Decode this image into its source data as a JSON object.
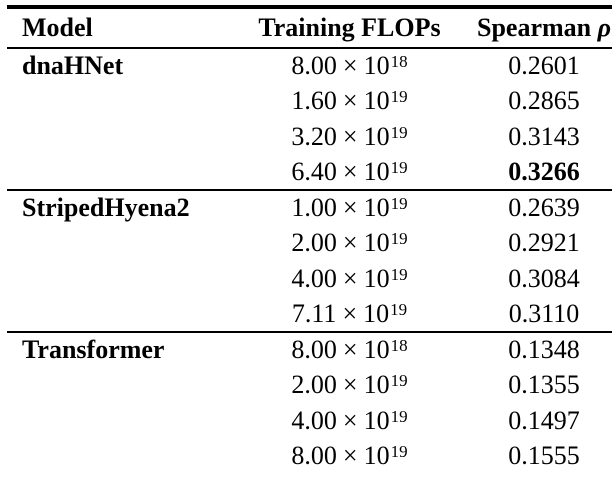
{
  "page": {
    "background_color": "#ffffff",
    "text_color": "#000000",
    "rule_color": "#000000"
  },
  "table": {
    "headers": {
      "model": "Model",
      "flops": "Training FLOPs",
      "spearman_word": "Spearman",
      "rho_symbol": "ρ"
    },
    "notation": {
      "multiply_symbol": "×",
      "base": "10"
    },
    "best_value": "0.3266",
    "groups": [
      {
        "model": "dnaHNet",
        "rows": [
          {
            "flops_coefficient": "8.00",
            "flops_exponent": "18",
            "spearman": "0.2601",
            "bold": false
          },
          {
            "flops_coefficient": "1.60",
            "flops_exponent": "19",
            "spearman": "0.2865",
            "bold": false
          },
          {
            "flops_coefficient": "3.20",
            "flops_exponent": "19",
            "spearman": "0.3143",
            "bold": false
          },
          {
            "flops_coefficient": "6.40",
            "flops_exponent": "19",
            "spearman": "0.3266",
            "bold": true
          }
        ]
      },
      {
        "model": "StripedHyena2",
        "rows": [
          {
            "flops_coefficient": "1.00",
            "flops_exponent": "19",
            "spearman": "0.2639",
            "bold": false
          },
          {
            "flops_coefficient": "2.00",
            "flops_exponent": "19",
            "spearman": "0.2921",
            "bold": false
          },
          {
            "flops_coefficient": "4.00",
            "flops_exponent": "19",
            "spearman": "0.3084",
            "bold": false
          },
          {
            "flops_coefficient": "7.11",
            "flops_exponent": "19",
            "spearman": "0.3110",
            "bold": false
          }
        ]
      },
      {
        "model": "Transformer",
        "rows": [
          {
            "flops_coefficient": "8.00",
            "flops_exponent": "18",
            "spearman": "0.1348",
            "bold": false
          },
          {
            "flops_coefficient": "2.00",
            "flops_exponent": "19",
            "spearman": "0.1355",
            "bold": false
          },
          {
            "flops_coefficient": "4.00",
            "flops_exponent": "19",
            "spearman": "0.1497",
            "bold": false
          },
          {
            "flops_coefficient": "8.00",
            "flops_exponent": "19",
            "spearman": "0.1555",
            "bold": false
          }
        ]
      }
    ]
  },
  "chart_data": {
    "type": "table",
    "columns": [
      "Model",
      "Training FLOPs",
      "Spearman ρ"
    ],
    "rows": [
      [
        "dnaHNet",
        "8.00 × 10^18",
        "0.2601"
      ],
      [
        "dnaHNet",
        "1.60 × 10^19",
        "0.2865"
      ],
      [
        "dnaHNet",
        "3.20 × 10^19",
        "0.3143"
      ],
      [
        "dnaHNet",
        "6.40 × 10^19",
        "0.3266"
      ],
      [
        "StripedHyena2",
        "1.00 × 10^19",
        "0.2639"
      ],
      [
        "StripedHyena2",
        "2.00 × 10^19",
        "0.2921"
      ],
      [
        "StripedHyena2",
        "4.00 × 10^19",
        "0.3084"
      ],
      [
        "StripedHyena2",
        "7.11 × 10^19",
        "0.3110"
      ],
      [
        "Transformer",
        "8.00 × 10^18",
        "0.1348"
      ],
      [
        "Transformer",
        "2.00 × 10^19",
        "0.1355"
      ],
      [
        "Transformer",
        "4.00 × 10^19",
        "0.1497"
      ],
      [
        "Transformer",
        "8.00 × 10^19",
        "0.1555"
      ]
    ],
    "notes": "0.3266 rendered bold (best Spearman); model names bold; group separators between models"
  }
}
